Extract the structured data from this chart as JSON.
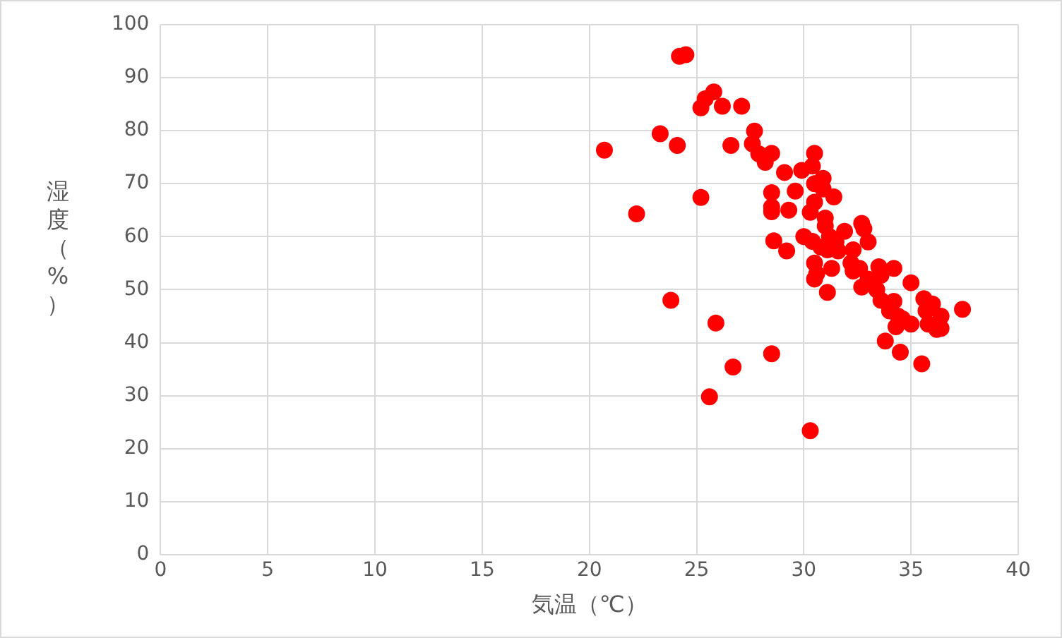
{
  "chart_data": {
    "type": "scatter",
    "xlabel": "気温（℃）",
    "ylabel": "湿度（%）",
    "xlim": [
      0,
      40
    ],
    "xticks": [
      0,
      5,
      10,
      15,
      20,
      25,
      30,
      35,
      40
    ],
    "ylim": [
      0,
      100
    ],
    "yticks": [
      0,
      10,
      20,
      30,
      40,
      50,
      60,
      70,
      80,
      90,
      100
    ],
    "grid": true,
    "marker": "circle",
    "legend": false,
    "series": [
      {
        "color": "#ff0000",
        "x": [
          20.7,
          22.2,
          23.3,
          23.8,
          24.1,
          24.2,
          24.5,
          25.2,
          25.2,
          25.4,
          25.8,
          25.6,
          25.9,
          26.2,
          26.6,
          26.7,
          27.1,
          27.6,
          27.7,
          27.9,
          28.2,
          28.5,
          28.5,
          28.5,
          28.5,
          28.6,
          28.5,
          29.1,
          29.2,
          29.3,
          29.6,
          29.9,
          30.0,
          30.3,
          30.3,
          30.5,
          30.4,
          30.5,
          30.5,
          30.4,
          30.5,
          30.6,
          30.5,
          30.8,
          30.9,
          30.9,
          31.0,
          31.0,
          31.1,
          31.1,
          31.3,
          31.4,
          31.2,
          31.5,
          31.6,
          31.9,
          32.2,
          32.3,
          32.3,
          32.6,
          32.7,
          32.8,
          32.7,
          33.0,
          33.0,
          33.4,
          33.5,
          33.6,
          33.6,
          33.8,
          34.0,
          34.2,
          34.2,
          34.3,
          34.4,
          34.5,
          34.6,
          35.0,
          35.0,
          35.5,
          35.6,
          35.7,
          35.8,
          36.0,
          36.2,
          36.4,
          36.4,
          37.4
        ],
        "values": [
          76.3,
          64.3,
          79.4,
          48,
          77.2,
          94,
          94.3,
          67.4,
          84.3,
          86,
          87.3,
          29.8,
          43.7,
          84.6,
          77.2,
          35.4,
          84.6,
          77.5,
          79.9,
          75.6,
          74,
          75.7,
          68.3,
          65.6,
          64.7,
          59.2,
          37.9,
          72.1,
          57.3,
          65,
          68.6,
          72.5,
          60,
          23.4,
          64.6,
          75.7,
          73.3,
          70,
          66.5,
          59.1,
          55,
          53,
          52,
          58,
          71,
          69,
          63.5,
          62,
          57.5,
          49.5,
          54,
          67.5,
          60,
          59,
          57.3,
          61,
          55,
          57.5,
          53.5,
          54,
          62.5,
          61.5,
          50.5,
          59,
          52,
          50,
          54.3,
          52.7,
          48,
          40.3,
          46,
          54,
          47.8,
          43,
          45,
          38.2,
          44.5,
          43.5,
          51.3,
          36,
          48.3,
          46,
          43.5,
          47.3,
          42.5,
          45,
          42.7,
          46.3
        ]
      }
    ]
  }
}
